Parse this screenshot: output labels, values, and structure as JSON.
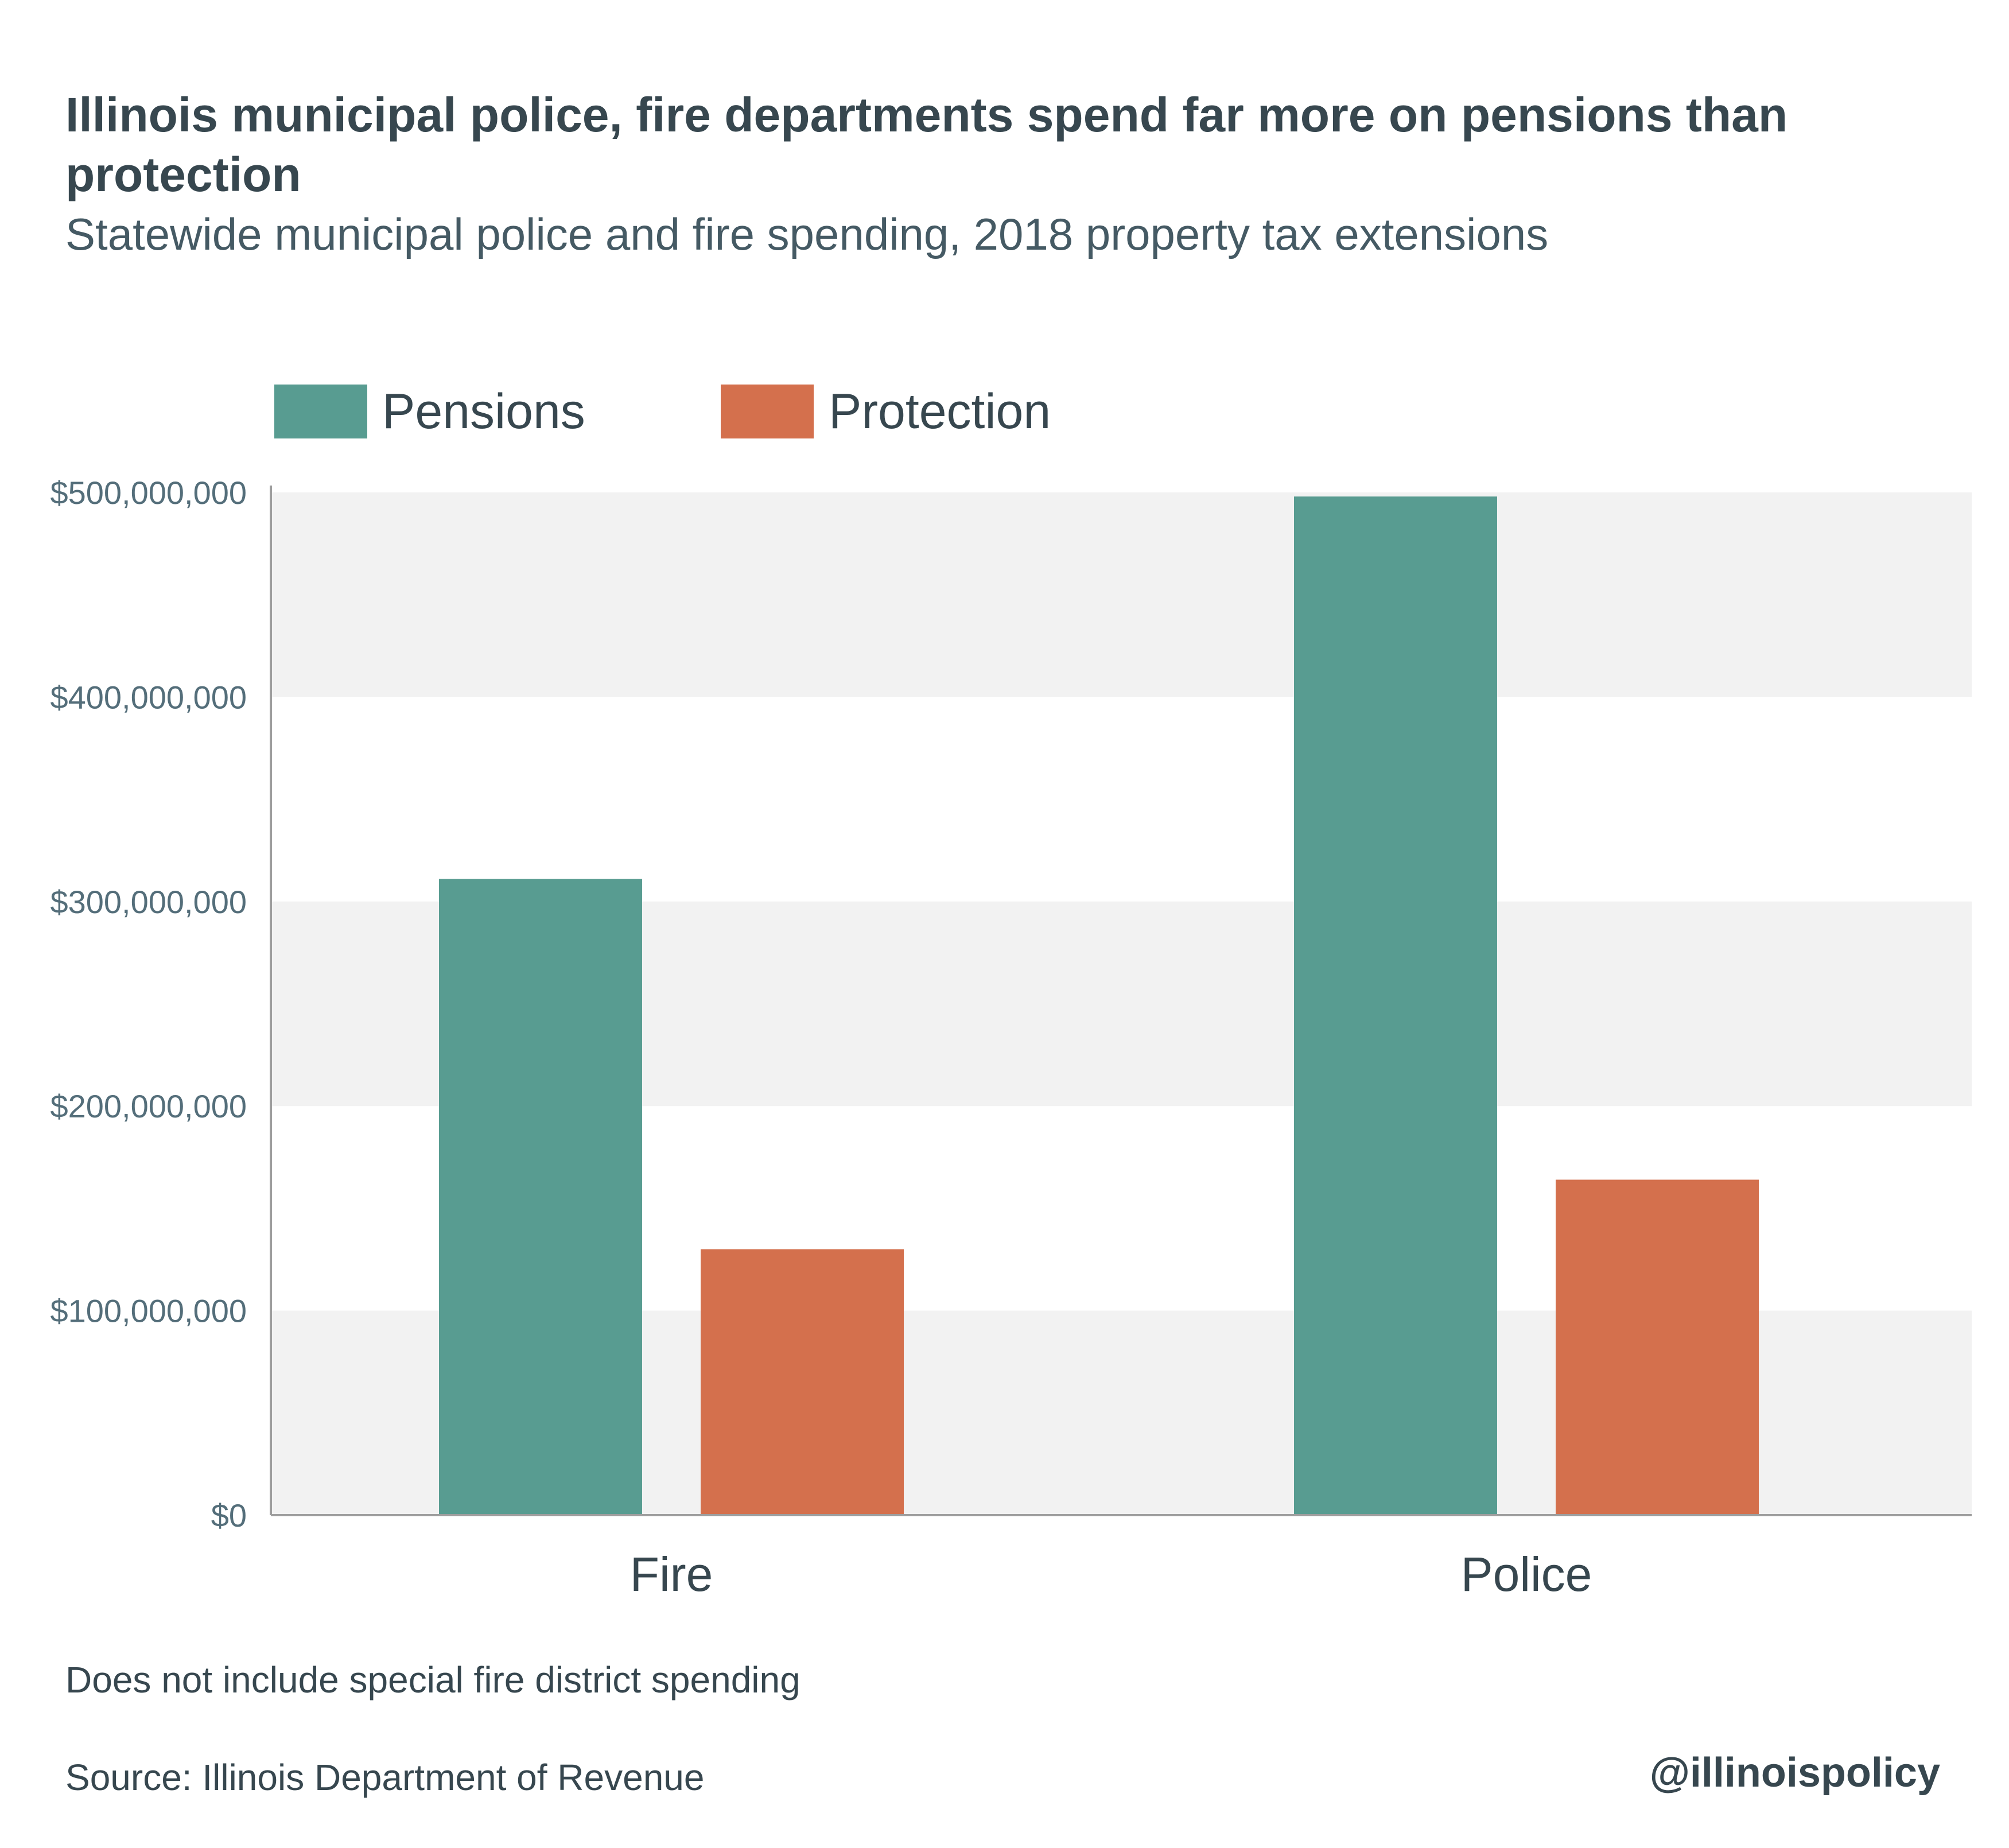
{
  "header": {
    "title": "Illinois municipal police, fire departments spend far more on pensions than protection",
    "subtitle": "Statewide municipal police and fire spending, 2018 property tax extensions"
  },
  "footer": {
    "note": "Does not include special fire district spending",
    "source": "Source: Illinois Department of Revenue",
    "handle": "@illinoispolicy"
  },
  "chart_data": {
    "type": "bar",
    "categories": [
      "Fire",
      "Police"
    ],
    "series": [
      {
        "name": "Pensions",
        "values": [
          311000000,
          498000000
        ],
        "color": "#589c91"
      },
      {
        "name": "Protection",
        "values": [
          130000000,
          164000000
        ],
        "color": "#d4704d"
      }
    ],
    "ylim": [
      0,
      500000000
    ],
    "yticks": [
      0,
      100000000,
      200000000,
      300000000,
      400000000,
      500000000
    ],
    "ytick_labels": [
      "$0",
      "$100,000,000",
      "$200,000,000",
      "$300,000,000",
      "$400,000,000",
      "$500,000,000"
    ],
    "legend_position": "top-left",
    "grid": "alternating horizontal bands",
    "band_color": "#f2f2f2",
    "axis_color": "#9e9e9e"
  }
}
